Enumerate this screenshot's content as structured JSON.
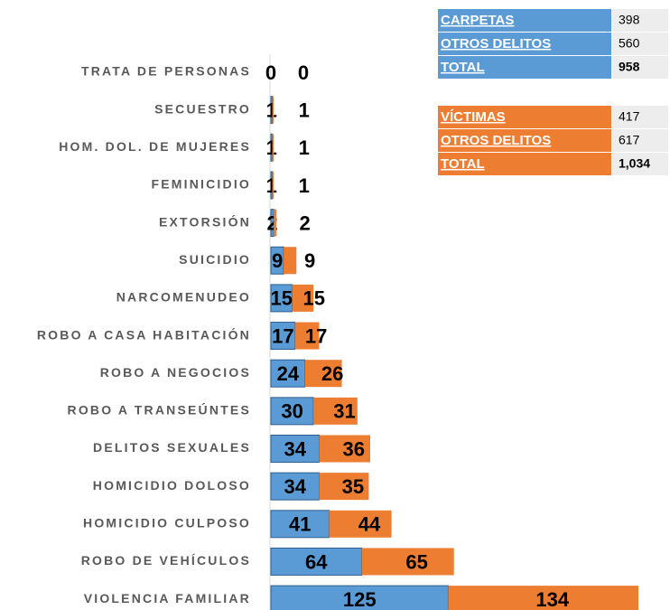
{
  "chart_data": {
    "type": "bar",
    "orientation": "horizontal",
    "stacked": true,
    "categories": [
      "TRATA DE PERSONAS",
      "SECUESTRO",
      "HOM. DOL. DE MUJERES",
      "FEMINICIDIO",
      "EXTORSIÓN",
      "SUICIDIO",
      "NARCOMENUDEO",
      "ROBO A CASA HABITACIÓN",
      "ROBO A NEGOCIOS",
      "ROBO A TRANSEÚNTES",
      "DELITOS SEXUALES",
      "HOMICIDIO DOLOSO",
      "HOMICIDIO CULPOSO",
      "ROBO DE VEHÍCULOS",
      "VIOLENCIA FAMILIAR"
    ],
    "series": [
      {
        "color": "#5b9bd5",
        "values": [
          0,
          1,
          1,
          1,
          2,
          9,
          15,
          17,
          24,
          30,
          34,
          34,
          41,
          64,
          125
        ]
      },
      {
        "color": "#ed7d31",
        "values": [
          0,
          1,
          1,
          1,
          2,
          9,
          15,
          17,
          26,
          31,
          36,
          35,
          44,
          65,
          134
        ]
      }
    ],
    "xlim": [
      0,
      280
    ]
  },
  "tables": [
    {
      "color": "#5b9bd5",
      "rows": [
        [
          "CARPETAS",
          398
        ],
        [
          "OTROS DELITOS",
          560
        ],
        [
          "TOTAL",
          958
        ]
      ]
    },
    {
      "color": "#ed7d31",
      "rows": [
        [
          "VÍCTIMAS",
          417
        ],
        [
          "OTROS DELITOS",
          617
        ],
        [
          "TOTAL",
          {
            "value": 1034,
            "label": "1,034"
          }
        ]
      ]
    }
  ]
}
